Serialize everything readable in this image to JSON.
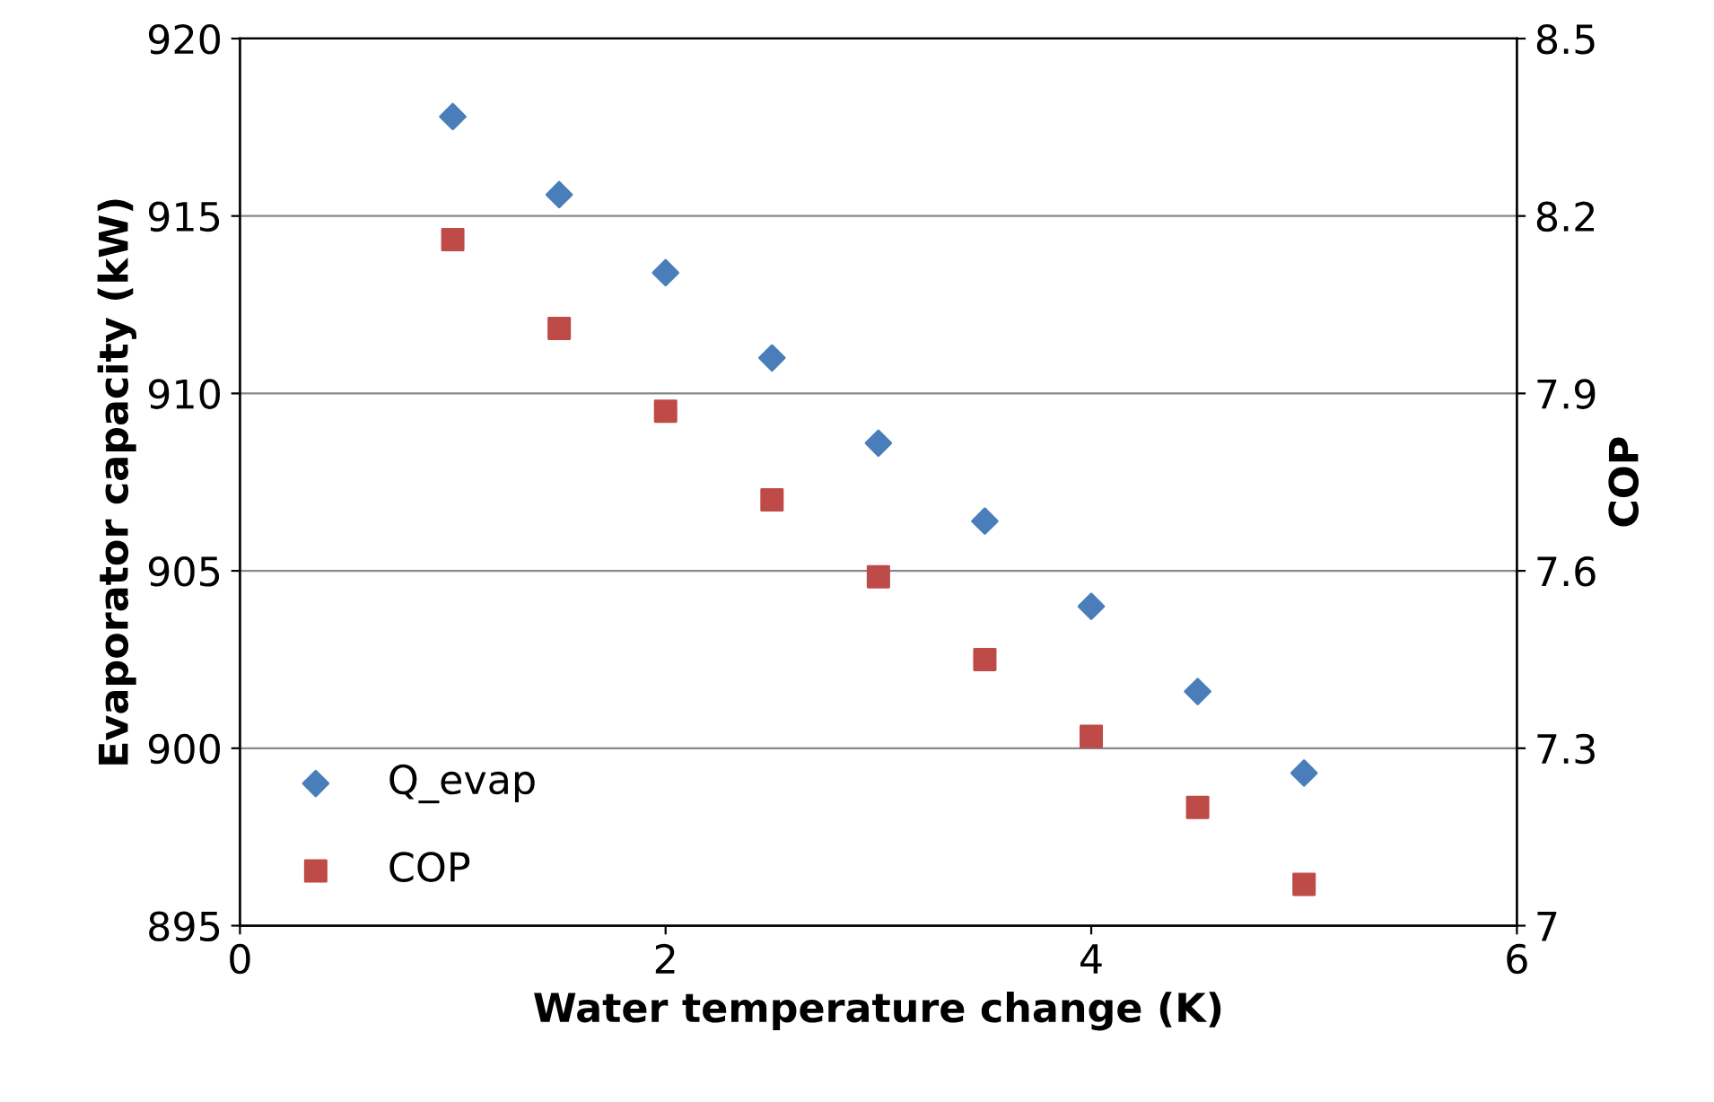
{
  "chart_data": {
    "type": "scatter",
    "xlabel": "Water temperature change (K)",
    "ylabel": "Evaporator capacity (kW)",
    "y2label": "COP",
    "x": [
      1,
      1.5,
      2,
      2.5,
      3,
      3.5,
      4,
      4.5,
      5
    ],
    "series": [
      {
        "name": "Q_evap",
        "color": "#4a7ebb",
        "marker": "diamond",
        "values": [
          917.8,
          915.6,
          913.4,
          911.0,
          908.6,
          906.4,
          904.0,
          901.6,
          899.3
        ]
      },
      {
        "name": "COP",
        "color": "#be4b48",
        "marker": "square",
        "axis": "y2",
        "values": [
          8.16,
          8.01,
          7.87,
          7.72,
          7.59,
          7.45,
          7.32,
          7.2,
          7.07
        ]
      }
    ],
    "xlim": [
      0,
      6
    ],
    "xticks": [
      0,
      2,
      4,
      6
    ],
    "ylim": [
      895,
      920
    ],
    "yticks": [
      895,
      900,
      905,
      910,
      915,
      920
    ],
    "y2lim": [
      7,
      8.5
    ],
    "y2ticks": [
      7,
      7.3,
      7.6,
      7.9,
      8.2,
      8.5
    ],
    "grid": "y",
    "legend": "bottom left"
  }
}
